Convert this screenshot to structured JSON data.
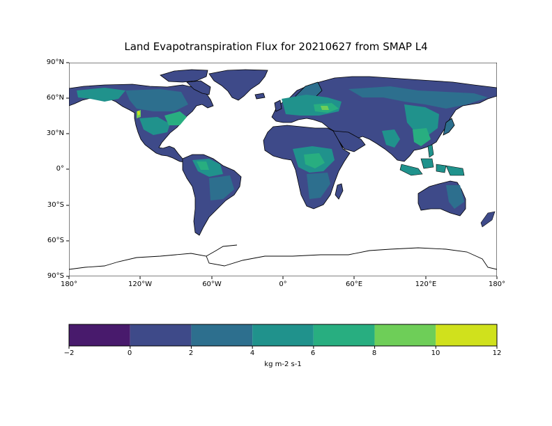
{
  "title": "Land Evapotranspiration Flux for 20210627 from SMAP L4",
  "lat_ticks": [
    "90°N",
    "60°N",
    "30°N",
    "0°",
    "30°S",
    "60°S",
    "90°S"
  ],
  "lon_ticks": [
    "180°",
    "120°W",
    "60°W",
    "0°",
    "60°E",
    "120°E",
    "180°"
  ],
  "colorbar": {
    "unit": "kg m-2 s-1",
    "ticks": [
      "−2",
      "0",
      "2",
      "4",
      "6",
      "8",
      "10",
      "12"
    ],
    "bins": [
      {
        "from": -2,
        "to": 0,
        "color": "#481a6c"
      },
      {
        "from": 0,
        "to": 2,
        "color": "#3e4a89"
      },
      {
        "from": 2,
        "to": 4,
        "color": "#2d6f8e"
      },
      {
        "from": 4,
        "to": 6,
        "color": "#20928c"
      },
      {
        "from": 6,
        "to": 8,
        "color": "#28ae80"
      },
      {
        "from": 8,
        "to": 10,
        "color": "#6ece58"
      },
      {
        "from": 10,
        "to": 12,
        "color": "#d0e11c"
      }
    ]
  },
  "projection": "PlateCarree",
  "ocean_color": "#ffffff",
  "coastline_color": "#000000"
}
